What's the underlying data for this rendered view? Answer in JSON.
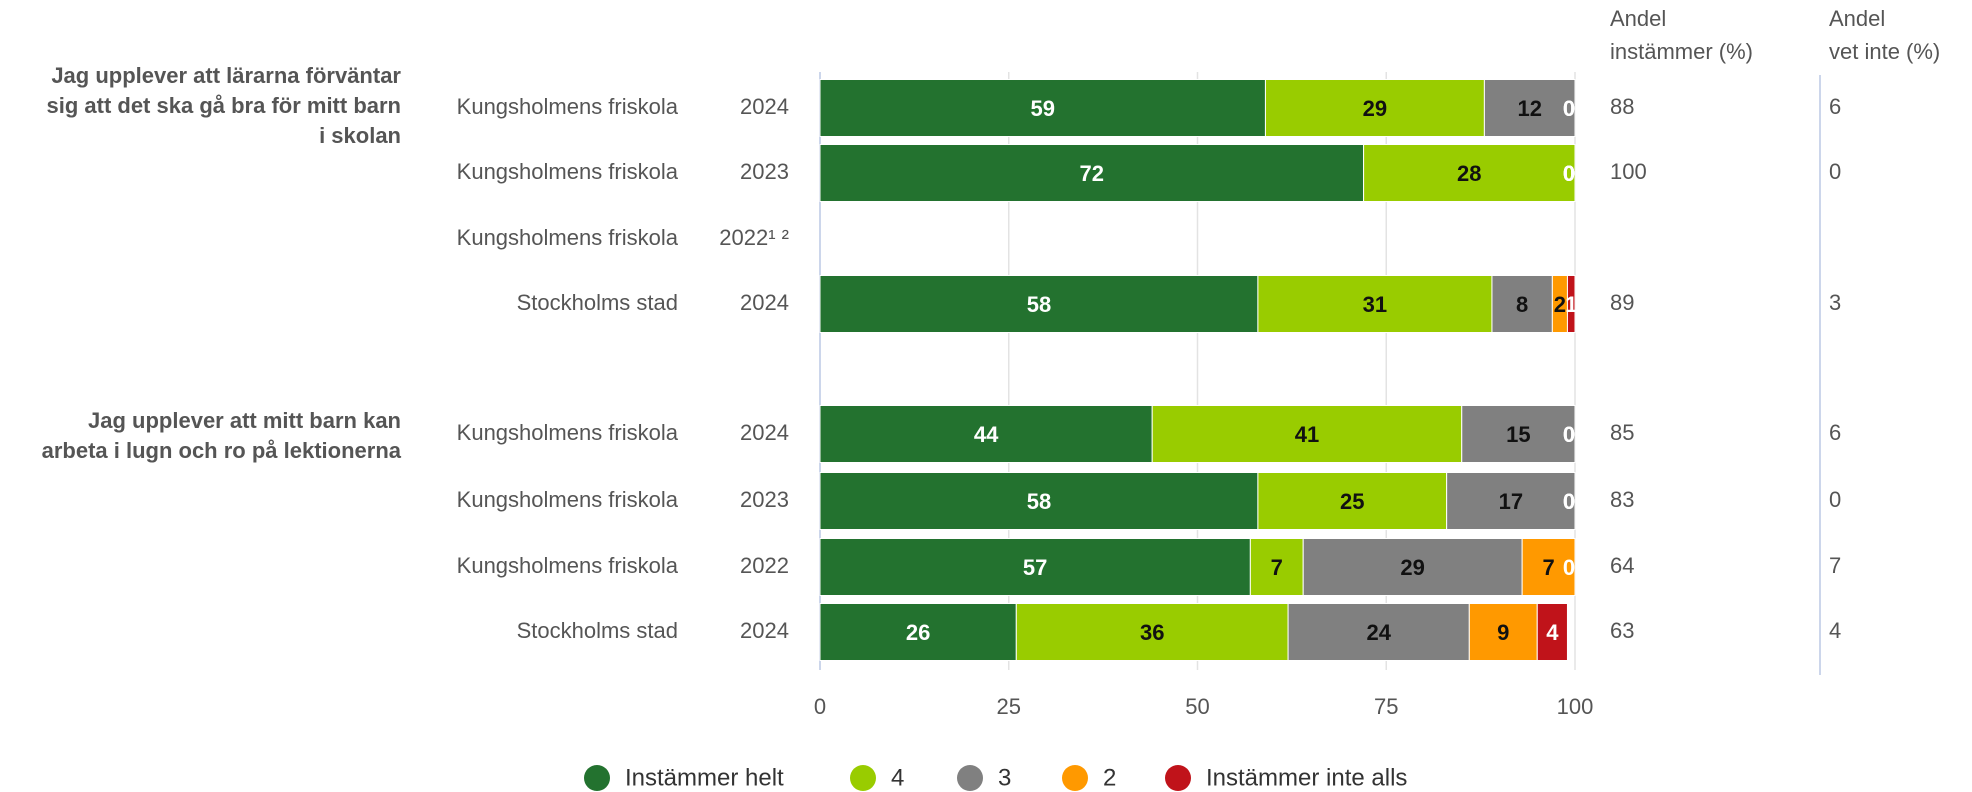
{
  "chart_data": {
    "type": "stacked-bar-horizontal",
    "questions": [
      [
        "Jag upplever att lärarna förväntar",
        "sig att det ska gå bra för mitt barn",
        "i skolan"
      ],
      [
        "Jag upplever att mitt barn kan",
        "arbeta i lugn och ro på lektionerna"
      ]
    ],
    "categories": [
      "Kungsholmens friskola",
      "Kungsholmens friskola",
      "Kungsholmens friskola",
      "Stockholms stad",
      "Kungsholmens friskola",
      "Kungsholmens friskola",
      "Kungsholmens friskola",
      "Stockholms stad"
    ],
    "years": [
      "2024",
      "2023",
      "2022¹ ²",
      "2024",
      "2024",
      "2023",
      "2022",
      "2024"
    ],
    "series": [
      {
        "name": "Instämmer helt",
        "color": "#23722f",
        "values": [
          59,
          72,
          null,
          58,
          44,
          58,
          57,
          26
        ]
      },
      {
        "name": "4",
        "color": "#99cc00",
        "values": [
          29,
          28,
          null,
          31,
          41,
          25,
          7,
          36
        ]
      },
      {
        "name": "3",
        "color": "#808080",
        "values": [
          12,
          0,
          null,
          8,
          15,
          17,
          29,
          24
        ]
      },
      {
        "name": "2",
        "color": "#ff9900",
        "values": [
          0,
          0,
          null,
          2,
          0,
          0,
          7,
          9
        ]
      },
      {
        "name": "Instämmer inte alls",
        "color": "#c0131a",
        "values": [
          0,
          0,
          null,
          1,
          0,
          0,
          0,
          4
        ]
      }
    ],
    "columns": [
      {
        "header": [
          "Andel",
          "instämmer (%)"
        ],
        "values": [
          88,
          100,
          null,
          89,
          85,
          83,
          64,
          63
        ]
      },
      {
        "header": [
          "Andel",
          "vet inte (%)"
        ],
        "values": [
          6,
          0,
          null,
          3,
          6,
          0,
          7,
          4
        ]
      }
    ],
    "xlim": [
      0,
      100
    ],
    "xticks": [
      0,
      25,
      50,
      75,
      100
    ],
    "grid": true,
    "legend": "bottom"
  }
}
